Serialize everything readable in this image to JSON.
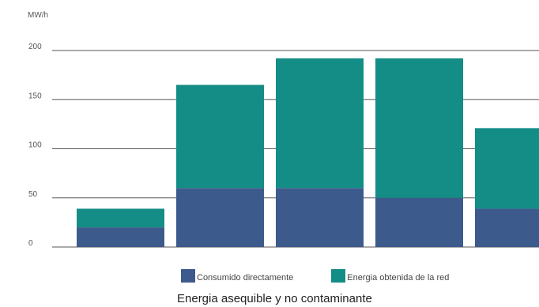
{
  "chart_data": {
    "type": "bar",
    "stacked": true,
    "ylabel": "MW/h",
    "ylim": [
      0,
      200
    ],
    "yticks": [
      0,
      50,
      100,
      150,
      200
    ],
    "grid": true,
    "categories": [
      "",
      "",
      "",
      "",
      ""
    ],
    "series": [
      {
        "name": "Consumido directamente",
        "color": "#3d5a8c",
        "values": [
          20,
          60,
          60,
          50,
          39
        ]
      },
      {
        "name": "Energia obtenida de la red",
        "color": "#138d86",
        "values": [
          19,
          105,
          132,
          142,
          82
        ]
      }
    ],
    "legend_position": "bottom",
    "caption": "Energia asequible y no contaminante"
  }
}
